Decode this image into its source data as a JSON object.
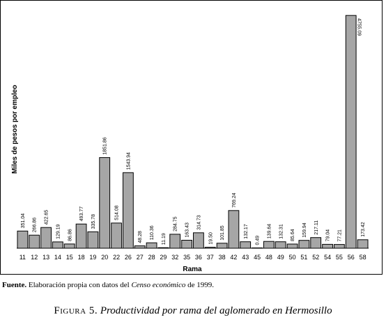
{
  "chart_data": {
    "type": "bar",
    "title": "",
    "xlabel": "Rama",
    "ylabel": "Miles de pesos por empleo",
    "categories": [
      "11",
      "12",
      "13",
      "14",
      "15",
      "18",
      "19",
      "20",
      "22",
      "26",
      "27",
      "28",
      "29",
      "32",
      "35",
      "36",
      "37",
      "38",
      "42",
      "43",
      "45",
      "48",
      "49",
      "50",
      "51",
      "52",
      "54",
      "55",
      "56",
      "58"
    ],
    "values": [
      351.04,
      266.86,
      422.65,
      129.19,
      86.86,
      493.77,
      335.78,
      1851.86,
      514.08,
      1543.94,
      48.28,
      110.36,
      11.19,
      284.75,
      163.43,
      314.73,
      19.5,
      101.85,
      769.24,
      132.17,
      0.49,
      139.64,
      132.31,
      85.64,
      159.94,
      217.11,
      79.04,
      77.21,
      4755.09,
      173.42
    ],
    "value_labels": [
      "351.04",
      "266.86",
      "422.65",
      "129.19",
      "86.86",
      "493.77",
      "335.78",
      "1851.86",
      "514.08",
      "1543.94",
      "48.28",
      "110.36",
      "11.19",
      "284.75",
      "163.43",
      "314.73",
      "19.50",
      "101.85",
      "769.24",
      "132.17",
      "0.49",
      "139.64",
      "132.31",
      "85.64",
      "159.94",
      "217.11",
      "79.04",
      "77.21",
      "4755.09",
      "173.42"
    ],
    "ylim": [
      0,
      4800
    ],
    "bar_color": "#a6a6a6",
    "grid": false,
    "legend": "none"
  },
  "source_note": {
    "lead": "Fuente.",
    "text_before": " Elaboración propia con datos del ",
    "italic": "Censo económico",
    "text_after": " de 1999."
  },
  "caption": {
    "figure": "Figura 5.",
    "description": " Productividad por rama del aglomerado en Hermosillo"
  }
}
